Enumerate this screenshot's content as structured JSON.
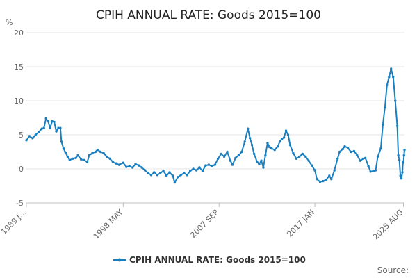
{
  "chart_data": {
    "type": "line",
    "title": "CPIH ANNUAL RATE: Goods 2015=100",
    "ylabel": "%",
    "xlabel": "",
    "ylim": [
      -5,
      20
    ],
    "yticks": [
      -5,
      0,
      5,
      10,
      15,
      20
    ],
    "xlim": [
      1989.0,
      2025.7
    ],
    "x_tick_labels": [
      {
        "x": 1989.0,
        "label": "1989 J..."
      },
      {
        "x": 1998.4,
        "label": "1998 MAY"
      },
      {
        "x": 2007.7,
        "label": "2007 SEP"
      },
      {
        "x": 2017.0,
        "label": "2017 JAN"
      },
      {
        "x": 2025.6,
        "label": "2025 AUG"
      }
    ],
    "series": [
      {
        "name": "CPIH ANNUAL RATE: Goods 2015=100",
        "color": "#1a7fc1",
        "points": [
          [
            1989.0,
            4.2
          ],
          [
            1989.3,
            4.8
          ],
          [
            1989.6,
            4.5
          ],
          [
            1989.9,
            5.0
          ],
          [
            1990.2,
            5.4
          ],
          [
            1990.5,
            5.9
          ],
          [
            1990.7,
            6.0
          ],
          [
            1990.9,
            7.4
          ],
          [
            1991.1,
            7.0
          ],
          [
            1991.3,
            6.0
          ],
          [
            1991.5,
            7.0
          ],
          [
            1991.7,
            6.9
          ],
          [
            1991.9,
            5.5
          ],
          [
            1992.1,
            6.0
          ],
          [
            1992.3,
            6.0
          ],
          [
            1992.4,
            4.0
          ],
          [
            1992.6,
            3.0
          ],
          [
            1992.8,
            2.4
          ],
          [
            1993.0,
            1.8
          ],
          [
            1993.2,
            1.3
          ],
          [
            1993.5,
            1.5
          ],
          [
            1993.8,
            1.6
          ],
          [
            1994.0,
            2.0
          ],
          [
            1994.3,
            1.4
          ],
          [
            1994.6,
            1.3
          ],
          [
            1994.9,
            1.0
          ],
          [
            1995.1,
            2.0
          ],
          [
            1995.4,
            2.3
          ],
          [
            1995.7,
            2.5
          ],
          [
            1995.9,
            2.8
          ],
          [
            1996.2,
            2.5
          ],
          [
            1996.5,
            2.3
          ],
          [
            1996.8,
            1.8
          ],
          [
            1997.1,
            1.5
          ],
          [
            1997.4,
            1.0
          ],
          [
            1997.7,
            0.8
          ],
          [
            1998.0,
            0.6
          ],
          [
            1998.4,
            0.9
          ],
          [
            1998.7,
            0.3
          ],
          [
            1999.0,
            0.4
          ],
          [
            1999.3,
            0.2
          ],
          [
            1999.6,
            0.7
          ],
          [
            1999.9,
            0.5
          ],
          [
            2000.2,
            0.2
          ],
          [
            2000.5,
            -0.2
          ],
          [
            2000.8,
            -0.6
          ],
          [
            2001.1,
            -0.9
          ],
          [
            2001.4,
            -0.5
          ],
          [
            2001.7,
            -0.9
          ],
          [
            2002.0,
            -0.6
          ],
          [
            2002.3,
            -0.3
          ],
          [
            2002.6,
            -1.0
          ],
          [
            2002.9,
            -0.5
          ],
          [
            2003.2,
            -1.0
          ],
          [
            2003.4,
            -2.0
          ],
          [
            2003.7,
            -1.2
          ],
          [
            2004.0,
            -0.9
          ],
          [
            2004.3,
            -0.6
          ],
          [
            2004.6,
            -0.9
          ],
          [
            2004.9,
            -0.3
          ],
          [
            2005.2,
            0.0
          ],
          [
            2005.5,
            -0.2
          ],
          [
            2005.8,
            0.2
          ],
          [
            2006.1,
            -0.3
          ],
          [
            2006.4,
            0.5
          ],
          [
            2006.7,
            0.6
          ],
          [
            2007.0,
            0.4
          ],
          [
            2007.3,
            0.6
          ],
          [
            2007.6,
            1.5
          ],
          [
            2007.9,
            2.2
          ],
          [
            2008.2,
            1.8
          ],
          [
            2008.5,
            2.5
          ],
          [
            2008.8,
            1.2
          ],
          [
            2009.0,
            0.6
          ],
          [
            2009.3,
            1.6
          ],
          [
            2009.6,
            2.0
          ],
          [
            2009.9,
            2.5
          ],
          [
            2010.2,
            4.0
          ],
          [
            2010.5,
            5.9
          ],
          [
            2010.7,
            4.5
          ],
          [
            2010.9,
            3.5
          ],
          [
            2011.1,
            2.2
          ],
          [
            2011.4,
            1.0
          ],
          [
            2011.6,
            0.7
          ],
          [
            2011.8,
            1.2
          ],
          [
            2012.0,
            0.2
          ],
          [
            2012.2,
            2.0
          ],
          [
            2012.4,
            3.8
          ],
          [
            2012.6,
            3.2
          ],
          [
            2012.8,
            3.0
          ],
          [
            2013.1,
            2.8
          ],
          [
            2013.4,
            3.3
          ],
          [
            2013.6,
            4.0
          ],
          [
            2013.8,
            4.4
          ],
          [
            2014.0,
            4.6
          ],
          [
            2014.2,
            5.6
          ],
          [
            2014.4,
            5.0
          ],
          [
            2014.6,
            3.5
          ],
          [
            2014.9,
            2.3
          ],
          [
            2015.2,
            1.5
          ],
          [
            2015.5,
            1.8
          ],
          [
            2015.8,
            2.2
          ],
          [
            2016.1,
            1.8
          ],
          [
            2016.4,
            1.2
          ],
          [
            2016.7,
            0.5
          ],
          [
            2017.0,
            -0.2
          ],
          [
            2017.2,
            -1.5
          ],
          [
            2017.5,
            -1.9
          ],
          [
            2017.8,
            -1.8
          ],
          [
            2018.1,
            -1.6
          ],
          [
            2018.4,
            -1.0
          ],
          [
            2018.6,
            -1.5
          ],
          [
            2018.9,
            -0.2
          ],
          [
            2019.2,
            1.5
          ],
          [
            2019.4,
            2.5
          ],
          [
            2019.7,
            2.9
          ],
          [
            2019.9,
            3.3
          ],
          [
            2020.2,
            3.1
          ],
          [
            2020.5,
            2.5
          ],
          [
            2020.8,
            2.6
          ],
          [
            2021.1,
            2.0
          ],
          [
            2021.4,
            1.2
          ],
          [
            2021.7,
            1.5
          ],
          [
            2021.9,
            1.6
          ],
          [
            2022.2,
            0.4
          ],
          [
            2022.4,
            -0.4
          ],
          [
            2022.7,
            -0.3
          ],
          [
            2022.9,
            -0.2
          ],
          [
            2023.1,
            1.8
          ],
          [
            2023.4,
            3.0
          ],
          [
            2023.6,
            6.5
          ],
          [
            2023.8,
            9.0
          ],
          [
            2024.0,
            12.3
          ],
          [
            2024.2,
            13.5
          ],
          [
            2024.4,
            14.7
          ],
          [
            2024.6,
            13.5
          ],
          [
            2024.8,
            10.0
          ],
          [
            2025.0,
            6.3
          ],
          [
            2025.1,
            2.0
          ],
          [
            2025.2,
            1.3
          ],
          [
            2025.3,
            -1.0
          ],
          [
            2025.4,
            -1.4
          ],
          [
            2025.5,
            -0.5
          ],
          [
            2025.55,
            1.0
          ],
          [
            2025.6,
            0.9
          ],
          [
            2025.65,
            2.0
          ],
          [
            2025.7,
            2.8
          ]
        ]
      }
    ],
    "legend": {
      "position": "bottom",
      "label": "CPIH ANNUAL RATE: Goods 2015=100"
    },
    "source_label": "Source:",
    "colors": {
      "line": "#1a7fc1",
      "grid": "#e6e6e6",
      "axis": "#c0c0c0"
    }
  }
}
